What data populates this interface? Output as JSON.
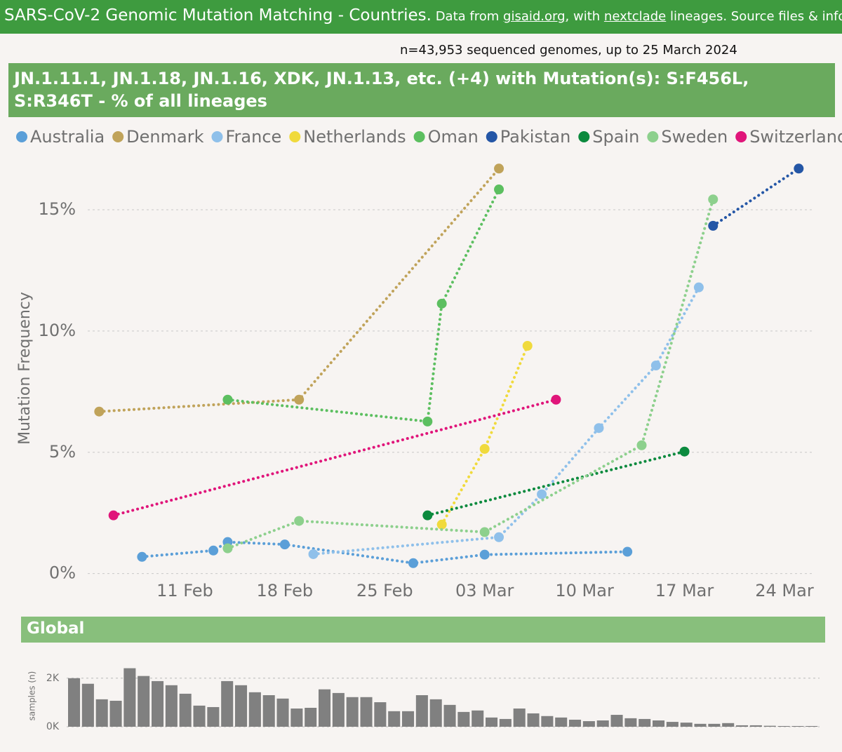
{
  "header": {
    "title": "SARS-CoV-2 Genomic Mutation Matching - Countries.",
    "source_parts": [
      "Data from",
      "gisaid.org",
      ", with",
      "nextclade",
      "lineages. Source files & info on g"
    ]
  },
  "subtitle": "n=43,953 sequenced genomes, up to 25 March 2024",
  "chart_data": [
    {
      "type": "line",
      "title": "JN.1.11.1, JN.1.18, JN.1.16, XDK, JN.1.13, etc. (+4) with Mutation(s): S:F456L, S:R346T - % of all lineages",
      "y_label": "Mutation Frequency",
      "legend": "top",
      "grid": true,
      "xlim": [
        "04 Feb",
        "27 Mar"
      ],
      "xticks": [
        "11 Feb",
        "18 Feb",
        "25 Feb",
        "03 Mar",
        "10 Mar",
        "17 Mar",
        "24 Mar"
      ],
      "ylim": [
        -0.3,
        17.2
      ],
      "yticks": [
        {
          "value": 0,
          "label": "0%"
        },
        {
          "value": 5,
          "label": "5%"
        },
        {
          "value": 10,
          "label": "10%"
        },
        {
          "value": 15,
          "label": "15%"
        }
      ],
      "series": [
        {
          "name": "Australia",
          "color": "#5b9fd8",
          "x": [
            "08 Feb",
            "13 Feb",
            "14 Feb",
            "18 Feb",
            "27 Feb",
            "03 Mar",
            "13 Mar"
          ],
          "values": [
            0.69,
            0.95,
            1.3,
            1.2,
            0.43,
            0.78,
            0.9
          ]
        },
        {
          "name": "Denmark",
          "color": "#c0a35a",
          "x": [
            "05 Feb",
            "19 Feb",
            "04 Mar"
          ],
          "values": [
            6.68,
            7.17,
            16.7
          ]
        },
        {
          "name": "France",
          "color": "#8fc0ea",
          "x": [
            "20 Feb",
            "04 Mar",
            "07 Mar",
            "11 Mar",
            "15 Mar",
            "18 Mar"
          ],
          "values": [
            0.8,
            1.5,
            3.27,
            6.0,
            8.58,
            11.8
          ]
        },
        {
          "name": "Netherlands",
          "color": "#f0da3c",
          "x": [
            "29 Feb",
            "03 Mar",
            "06 Mar"
          ],
          "values": [
            2.02,
            5.14,
            9.39
          ]
        },
        {
          "name": "Oman",
          "color": "#5cbf60",
          "x": [
            "14 Feb",
            "28 Feb",
            "29 Feb",
            "04 Mar"
          ],
          "values": [
            7.17,
            6.27,
            11.13,
            15.84
          ]
        },
        {
          "name": "Pakistan",
          "color": "#2456a6",
          "x": [
            "19 Mar",
            "25 Mar"
          ],
          "values": [
            14.34,
            16.7
          ]
        },
        {
          "name": "Spain",
          "color": "#0c8a3e",
          "x": [
            "28 Feb",
            "17 Mar"
          ],
          "values": [
            2.4,
            5.03
          ]
        },
        {
          "name": "Sweden",
          "color": "#8dd08d",
          "x": [
            "14 Feb",
            "19 Feb",
            "03 Mar",
            "14 Mar",
            "19 Mar"
          ],
          "values": [
            1.04,
            2.17,
            1.71,
            5.29,
            15.43
          ]
        },
        {
          "name": "Switzerland",
          "color": "#e0157a",
          "x": [
            "06 Feb",
            "08 Mar"
          ],
          "values": [
            2.4,
            7.17
          ]
        }
      ]
    },
    {
      "type": "bar",
      "title": "Global",
      "y_label": "samples (n)",
      "color": "#808080",
      "grid": true,
      "ylim": [
        0,
        2600
      ],
      "yticks": [
        {
          "value": 0,
          "label": "0K"
        },
        {
          "value": 2000,
          "label": "2K"
        }
      ],
      "categories": [
        null,
        null,
        null,
        null,
        null,
        null,
        null,
        null,
        null,
        null,
        null,
        null,
        null,
        null,
        null,
        null,
        null,
        null,
        null,
        null,
        null,
        null,
        null,
        null,
        null,
        null,
        null,
        null,
        null,
        null,
        null,
        null,
        null,
        null,
        null,
        null,
        null,
        null,
        null,
        null,
        null,
        null,
        null,
        null,
        null,
        null,
        null,
        null,
        null,
        null,
        null,
        null,
        null,
        null
      ],
      "values": [
        2000,
        1770,
        1130,
        1070,
        2410,
        2090,
        1880,
        1710,
        1360,
        870,
        810,
        1880,
        1710,
        1420,
        1300,
        1160,
        750,
        780,
        1540,
        1390,
        1220,
        1220,
        1010,
        640,
        640,
        1300,
        1130,
        900,
        610,
        670,
        380,
        320,
        750,
        550,
        440,
        380,
        290,
        230,
        260,
        490,
        350,
        320,
        260,
        200,
        170,
        120,
        120,
        150,
        60,
        60,
        40,
        30,
        30,
        30
      ]
    }
  ]
}
